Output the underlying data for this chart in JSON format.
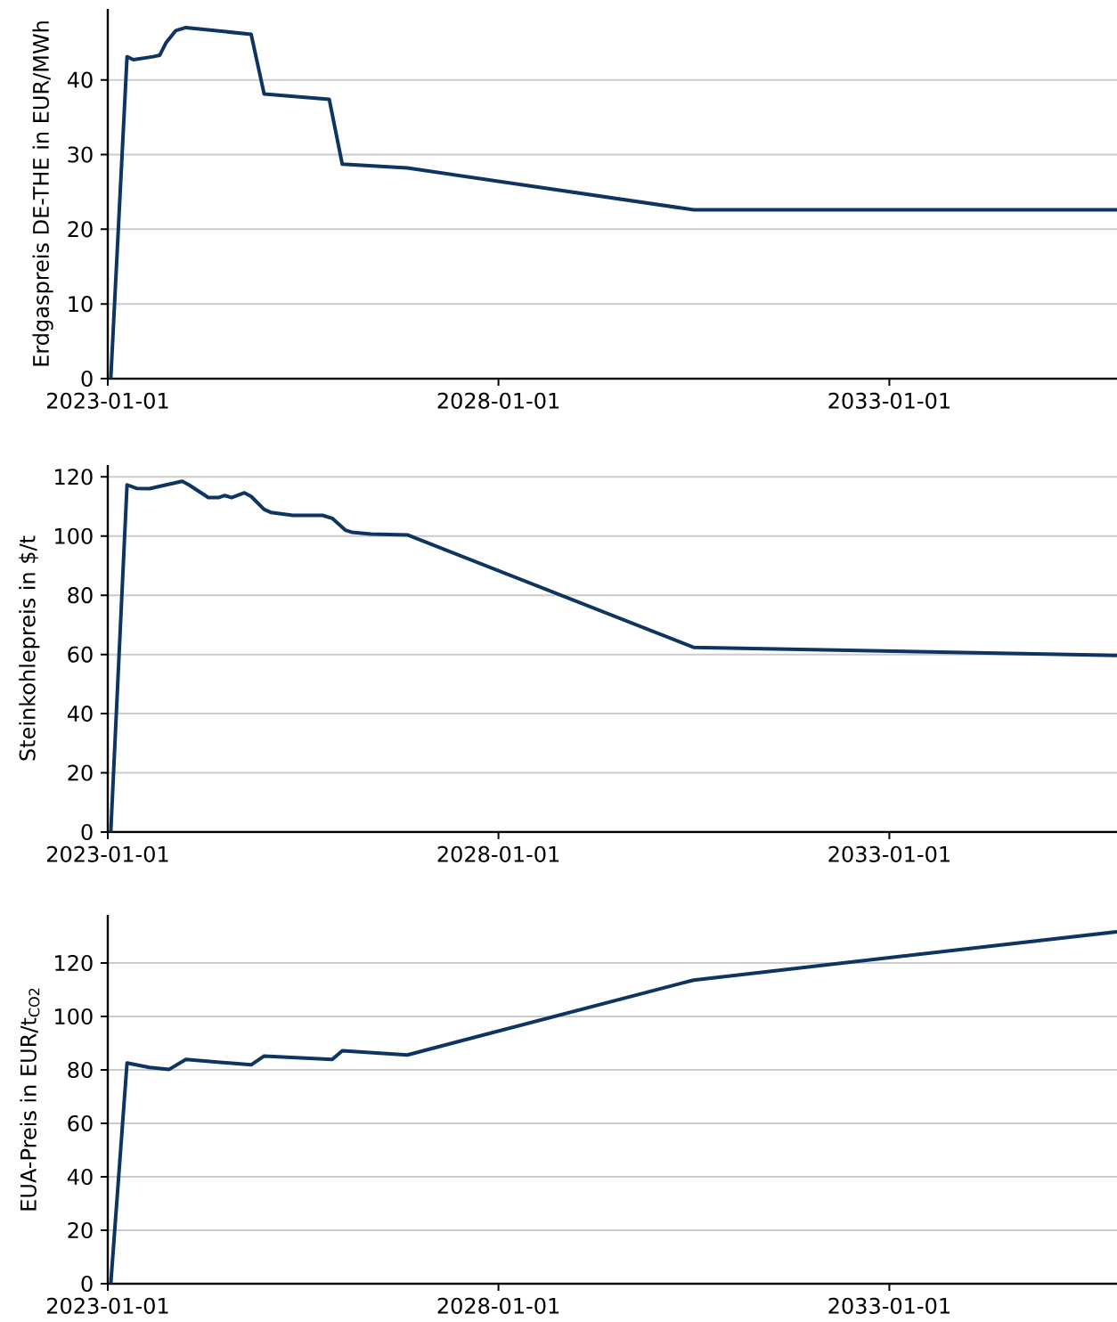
{
  "chart_data": [
    {
      "type": "line",
      "ylabel": "Erdgaspreis DE-THE in EUR/MWh",
      "xlim": [
        "2023-01-01",
        "2035-12-01"
      ],
      "ylim": [
        0,
        49.5
      ],
      "xticks": [
        "2023-01-01",
        "2028-01-01",
        "2033-01-01"
      ],
      "yticks": [
        0,
        10,
        20,
        30,
        40
      ],
      "grid": "y",
      "line_style": "solid",
      "x": [
        "2023-01-15",
        "2023-04-01",
        "2023-05-01",
        "2023-08-01",
        "2023-09-01",
        "2023-10-01",
        "2023-11-15",
        "2024-01-01",
        "2024-11-01",
        "2025-01-01",
        "2025-11-01",
        "2026-01-01",
        "2026-11-01",
        "2030-07-01",
        "2035-12-01"
      ],
      "series": [
        {
          "color": "#0d3560",
          "values": [
            0,
            43.1,
            42.7,
            43.1,
            43.3,
            45,
            46.6,
            47.0,
            46.1,
            38.1,
            37.4,
            28.7,
            28.2,
            22.6,
            22.6
          ]
        }
      ]
    },
    {
      "type": "line",
      "ylabel": "Steinkohlepreis in $/t",
      "xlim": [
        "2023-01-01",
        "2035-12-01"
      ],
      "ylim": [
        0,
        124
      ],
      "xticks": [
        "2023-01-01",
        "2028-01-01",
        "2033-01-01"
      ],
      "yticks": [
        0,
        20,
        40,
        60,
        80,
        100,
        120
      ],
      "grid": "y",
      "line_style": "solid",
      "x": [
        "2023-01-15",
        "2023-04-01",
        "2023-05-15",
        "2023-07-15",
        "2023-12-15",
        "2024-01-15",
        "2024-04-15",
        "2024-06-01",
        "2024-07-01",
        "2024-08-01",
        "2024-10-01",
        "2024-11-01",
        "2025-01-01",
        "2025-02-01",
        "2025-05-15",
        "2025-10-01",
        "2025-11-15",
        "2026-01-15",
        "2026-02-15",
        "2026-05-15",
        "2026-11-01",
        "2030-07-01",
        "2035-12-01"
      ],
      "series": [
        {
          "color": "#0d3560",
          "values": [
            0,
            117.3,
            116.1,
            116,
            118.5,
            117.3,
            113,
            113,
            113.7,
            113,
            114.6,
            113.4,
            109,
            108,
            107,
            107,
            106,
            102,
            101.3,
            100.7,
            100.4,
            62.4,
            59.7
          ]
        }
      ]
    },
    {
      "type": "line",
      "ylabel": "EUA-Preis in EUR/t$_{CO2}$",
      "xlim": [
        "2023-01-01",
        "2035-12-01"
      ],
      "ylim": [
        0,
        138
      ],
      "xticks": [
        "2023-01-01",
        "2028-01-01",
        "2033-01-01"
      ],
      "yticks": [
        0,
        20,
        40,
        60,
        80,
        100,
        120
      ],
      "grid": "y",
      "line_style": "solid",
      "x": [
        "2023-01-15",
        "2023-04-01",
        "2023-07-15",
        "2023-10-15",
        "2024-01-01",
        "2024-11-01",
        "2025-01-01",
        "2025-11-15",
        "2026-01-01",
        "2026-11-01",
        "2030-07-01",
        "2035-12-01"
      ],
      "series": [
        {
          "color": "#0d3560",
          "values": [
            0,
            82.6,
            80.9,
            80.2,
            83.9,
            81.9,
            85.2,
            83.9,
            87.2,
            85.6,
            113.6,
            131.7
          ]
        }
      ]
    }
  ]
}
